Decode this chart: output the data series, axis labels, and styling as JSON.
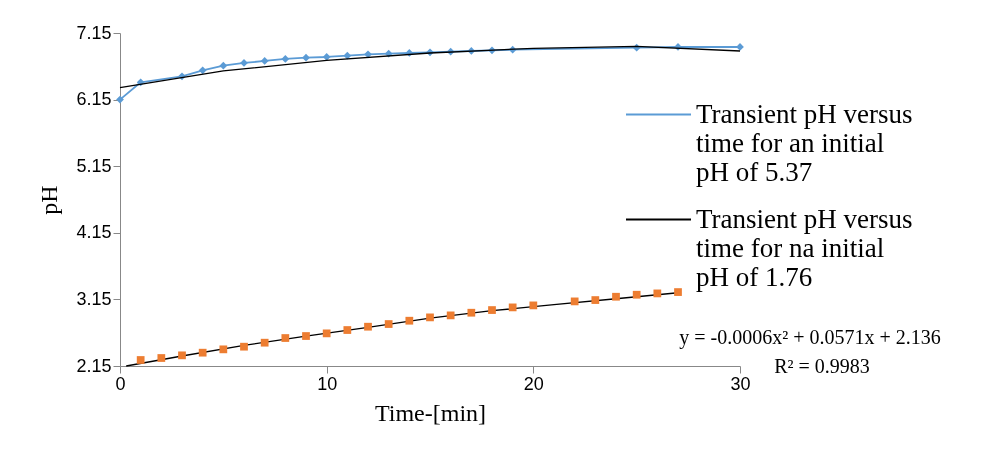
{
  "chart_data": {
    "type": "line",
    "xlabel": "Time-[min]",
    "ylabel": "pH",
    "xlim": [
      0,
      30
    ],
    "xticks": [
      0,
      10,
      20,
      30
    ],
    "ylim": [
      2.15,
      7.15
    ],
    "yticks": [
      2.15,
      3.15,
      4.15,
      5.15,
      6.15,
      7.15
    ],
    "grid": false,
    "legend": "right",
    "line_style": "solid",
    "series": [
      {
        "name": "Transient pH versus time for an initial pH of 5.37",
        "color": "#5b9bd5",
        "marker": "diamond",
        "x": [
          0,
          1,
          3,
          4,
          5,
          6,
          7,
          8,
          9,
          10,
          11,
          12,
          13,
          14,
          15,
          16,
          17,
          18,
          19,
          25,
          27,
          30
        ],
        "values": [
          6.15,
          6.41,
          6.5,
          6.59,
          6.66,
          6.7,
          6.73,
          6.76,
          6.78,
          6.79,
          6.81,
          6.83,
          6.84,
          6.85,
          6.86,
          6.87,
          6.88,
          6.89,
          6.9,
          6.93,
          6.94,
          6.94
        ]
      },
      {
        "color": "#000000",
        "marker": "none",
        "x": [
          0,
          5,
          10,
          15,
          20,
          25,
          30
        ],
        "values": [
          6.33,
          6.58,
          6.74,
          6.85,
          6.92,
          6.95,
          6.88
        ]
      },
      {
        "color": "#ed7d31",
        "marker": "square",
        "type": "scatter",
        "x": [
          1,
          2,
          3,
          4,
          5,
          6,
          7,
          8,
          9,
          10,
          11,
          12,
          13,
          14,
          15,
          16,
          17,
          18,
          19,
          20,
          22,
          23,
          24,
          25,
          26,
          27
        ],
        "values": [
          2.24,
          2.27,
          2.31,
          2.35,
          2.4,
          2.44,
          2.5,
          2.57,
          2.6,
          2.64,
          2.69,
          2.74,
          2.78,
          2.83,
          2.88,
          2.91,
          2.95,
          2.99,
          3.03,
          3.06,
          3.12,
          3.14,
          3.19,
          3.22,
          3.24,
          3.26
        ]
      },
      {
        "name": "Transient pH versus time for na initial pH of 1.76",
        "color": "#000000",
        "marker": "none",
        "x": [
          0.3,
          3,
          6,
          9,
          12,
          15,
          18,
          21,
          24,
          27
        ],
        "values": [
          2.15,
          2.3,
          2.46,
          2.6,
          2.73,
          2.87,
          2.98,
          3.07,
          3.16,
          3.25
        ]
      }
    ],
    "annotations": [
      "y = -0.0006x² + 0.0571x + 2.136",
      "R² = 0.9983"
    ]
  }
}
